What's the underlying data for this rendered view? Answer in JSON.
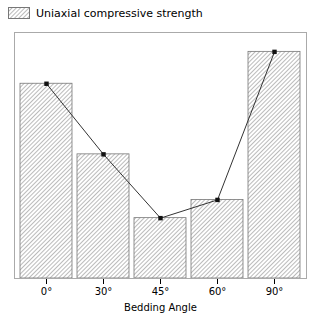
{
  "chart_data": {
    "type": "bar",
    "categories": [
      "0°",
      "30°",
      "45°",
      "60°",
      "90°"
    ],
    "series": [
      {
        "name": "Uniaxial compressive strength",
        "color": "#777777",
        "marker": "square",
        "values": [
          0.855,
          0.545,
          0.265,
          0.345,
          0.995
        ]
      }
    ],
    "xlabel": "Bedding Angle",
    "ylim": [
      0,
      1.08
    ],
    "yticks": [],
    "tick_labels": "x",
    "legend": "upper left",
    "grid": false
  }
}
